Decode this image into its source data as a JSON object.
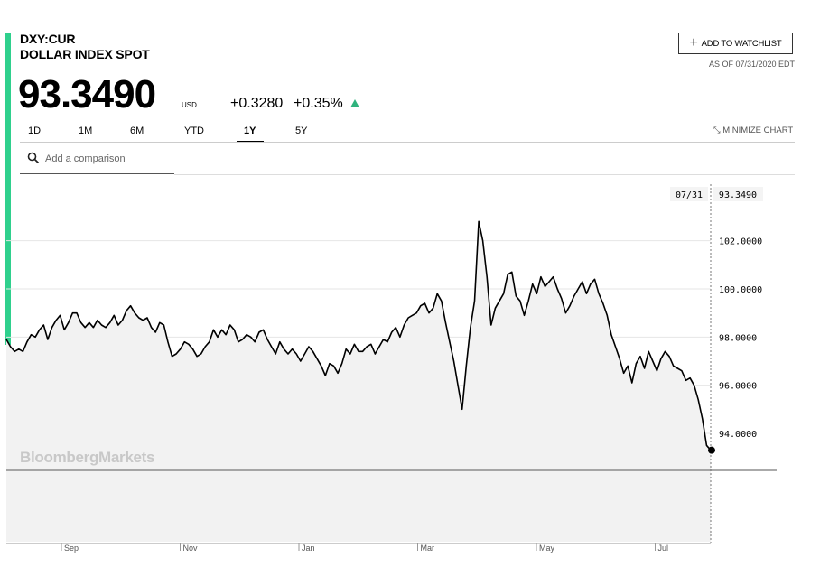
{
  "header": {
    "ticker": "DXY:CUR",
    "name": "DOLLAR INDEX SPOT",
    "price": "93.3490",
    "currency": "USD",
    "change": "+0.3280",
    "change_pct": "+0.35%",
    "direction": "up",
    "accent_color": "#2fd08d",
    "up_color": "#2fb37d"
  },
  "toolbar": {
    "watchlist_label": "ADD TO WATCHLIST",
    "as_of": "AS OF 07/31/2020 EDT",
    "ranges": [
      "1D",
      "1M",
      "6M",
      "YTD",
      "1Y",
      "5Y"
    ],
    "active_range": "1Y",
    "minimize_label": "MINIMIZE CHART",
    "compare_placeholder": "Add a comparison"
  },
  "watermark": "BloombergMarkets",
  "chart_data": {
    "type": "line",
    "x_ticks": [
      "Sep",
      "Nov",
      "Jan",
      "Mar",
      "May",
      "Jul"
    ],
    "y_ticks": [
      "94.0000",
      "96.0000",
      "98.0000",
      "100.0000",
      "102.0000"
    ],
    "ylim": [
      89.5,
      104.5
    ],
    "last_date": "07/31",
    "last_value": "93.3490",
    "series": [
      {
        "values": [
          97.9,
          97.6,
          97.4,
          97.5,
          97.4,
          97.8,
          98.1,
          98.0,
          98.3,
          98.5,
          97.9,
          98.4,
          98.7,
          98.9,
          98.3,
          98.6,
          99.0,
          99.0,
          98.6,
          98.4,
          98.6,
          98.4,
          98.7,
          98.5,
          98.4,
          98.6,
          98.9,
          98.5,
          98.7,
          99.1,
          99.3,
          99.0,
          98.8,
          98.7,
          98.8,
          98.4,
          98.2,
          98.6,
          98.5,
          97.8,
          97.2,
          97.3,
          97.5,
          97.8,
          97.7,
          97.5,
          97.2,
          97.3,
          97.6,
          97.8,
          98.3,
          98.0,
          98.3,
          98.1,
          98.5,
          98.3,
          97.8,
          97.9,
          98.1,
          98.0,
          97.8,
          98.2,
          98.3,
          97.9,
          97.6,
          97.3,
          97.8,
          97.5,
          97.3,
          97.5,
          97.3,
          97.0,
          97.3,
          97.6,
          97.4,
          97.1,
          96.8,
          96.4,
          96.9,
          96.8,
          96.5,
          96.9,
          97.5,
          97.3,
          97.7,
          97.4,
          97.4,
          97.6,
          97.7,
          97.3,
          97.6,
          97.9,
          97.8,
          98.2,
          98.4,
          98.0,
          98.5,
          98.8,
          98.9,
          99.0,
          99.3,
          99.4,
          99.0,
          99.2,
          99.8,
          99.5,
          98.6,
          97.8,
          97.0,
          96.0,
          95.0,
          96.8,
          98.4,
          99.5,
          102.8,
          102.0,
          100.5,
          98.5,
          99.2,
          99.5,
          99.8,
          100.6,
          100.7,
          99.7,
          99.5,
          98.9,
          99.5,
          100.2,
          99.8,
          100.5,
          100.1,
          100.3,
          100.5,
          100.0,
          99.6,
          99.0,
          99.3,
          99.7,
          100.0,
          100.3,
          99.8,
          100.2,
          100.4,
          99.8,
          99.4,
          98.9,
          98.1,
          97.6,
          97.1,
          96.5,
          96.8,
          96.1,
          96.9,
          97.2,
          96.7,
          97.4,
          97.0,
          96.6,
          97.1,
          97.4,
          97.2,
          96.8,
          96.7,
          96.6,
          96.2,
          96.3,
          96.0,
          95.4,
          94.6,
          93.5,
          93.3
        ]
      }
    ]
  }
}
